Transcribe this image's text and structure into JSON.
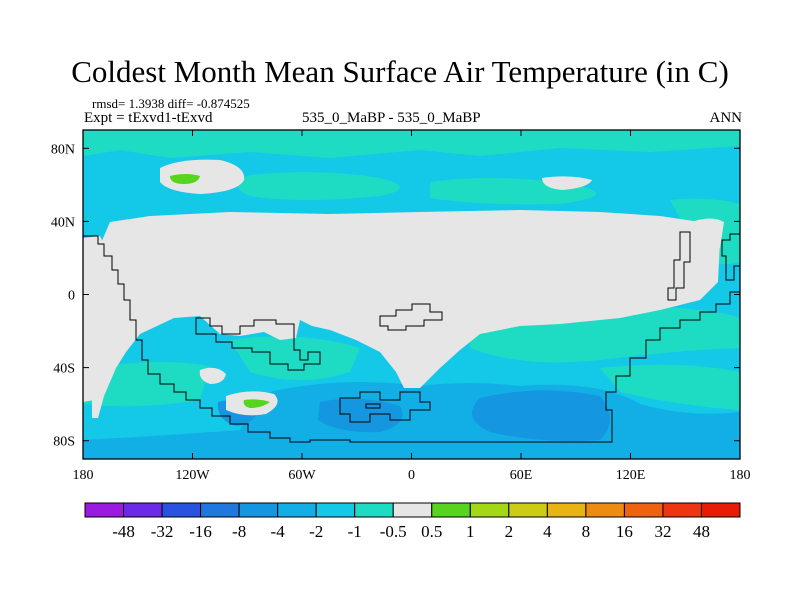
{
  "title": "Coldest Month Mean Surface Air Temperature (in C)",
  "stats": {
    "rmsd_label": "rmsd=",
    "rmsd_value": "1.3938",
    "diff_label": "diff=",
    "diff_value": "-0.874525",
    "rmsd_line": "rmsd= 1.3938 diff= -0.874525"
  },
  "experiment": "Expt = tExvd1-tExvd",
  "case": "535_0_MaBP - 535_0_MaBP",
  "season": "ANN",
  "chart_data": {
    "type": "heatmap",
    "projection": "cylindrical equidistant",
    "x_ticks": [
      "180",
      "120W",
      "60W",
      "0",
      "60E",
      "120E",
      "180"
    ],
    "x_tick_values": [
      -180,
      -120,
      -60,
      0,
      60,
      120,
      180
    ],
    "y_ticks": [
      "80N",
      "40N",
      "0",
      "40S",
      "80S"
    ],
    "y_tick_values": [
      80,
      40,
      0,
      -40,
      -80
    ],
    "xlim": [
      -180,
      180
    ],
    "ylim": [
      -90,
      90
    ],
    "colorbar": {
      "labels": [
        "-48",
        "-32",
        "-16",
        "-8",
        "-4",
        "-2",
        "-1",
        "-0.5",
        "0.5",
        "1",
        "2",
        "4",
        "8",
        "16",
        "32",
        "48"
      ],
      "colors": [
        "#9a1ae0",
        "#6a2ae8",
        "#2a52e0",
        "#1e78e0",
        "#1496e0",
        "#12aee6",
        "#14c8e8",
        "#1edcc4",
        "#e6e6e6",
        "#56d41e",
        "#a4d814",
        "#cccc14",
        "#e8b414",
        "#ee8c10",
        "#ee6210",
        "#ee3410",
        "#e81a08"
      ]
    },
    "dominant_values": {
      "land_interior": "-0.5 to 0.5",
      "ocean_background": "-2 to -1",
      "southern_ocean": "-4 to -2",
      "local_minima": "-8 to -4",
      "local_maxima": "0.5 to 1"
    }
  }
}
